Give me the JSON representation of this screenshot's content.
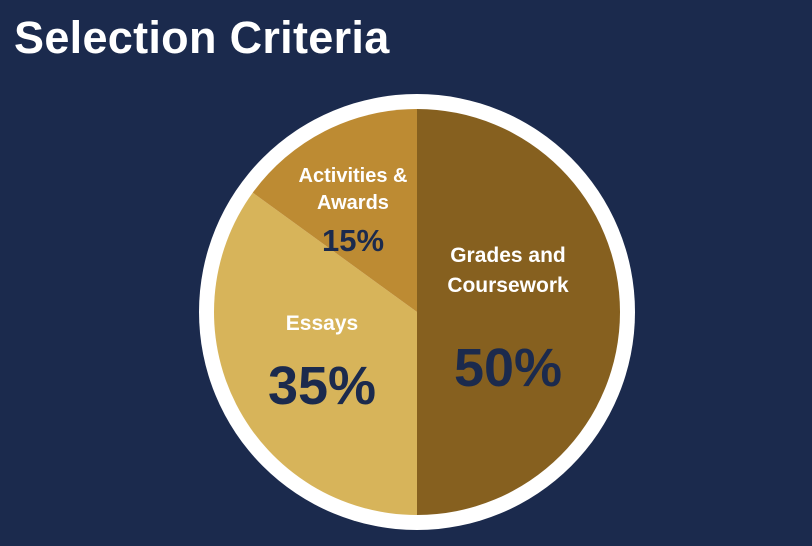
{
  "title": "Selection Criteria",
  "colors": {
    "background": "#1b2a4d",
    "ring": "#ffffff",
    "label_text": "#ffffff",
    "value_text": "#1b2a4d"
  },
  "chart_data": {
    "type": "pie",
    "title": "",
    "start": "12 o'clock",
    "direction": "clockwise",
    "legend": "none",
    "slices": [
      {
        "label_lines": [
          "Grades and",
          "Coursework"
        ],
        "value": 50,
        "value_label": "50%",
        "color": "#86601f"
      },
      {
        "label_lines": [
          "Essays"
        ],
        "value": 35,
        "value_label": "35%",
        "color": "#d7b45a"
      },
      {
        "label_lines": [
          "Activities &",
          "Awards"
        ],
        "value": 15,
        "value_label": "15%",
        "color": "#bd8b33"
      }
    ]
  }
}
